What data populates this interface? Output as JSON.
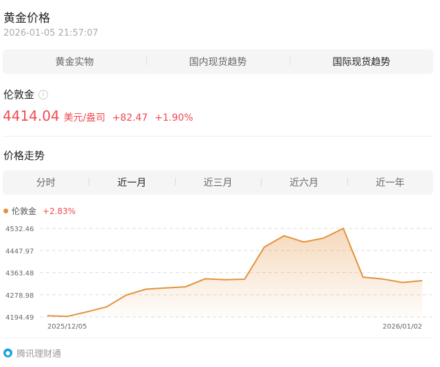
{
  "header": {
    "title": "黄金价格",
    "timestamp": "2026-01-05 21:57:07"
  },
  "tabs": [
    {
      "label": "黄金实物",
      "active": false
    },
    {
      "label": "国内现货趋势",
      "active": false
    },
    {
      "label": "国际现货趋势",
      "active": true
    }
  ],
  "quote": {
    "name": "伦敦金",
    "price": "4414.04",
    "unit": "美元/盎司",
    "change": "+82.47",
    "change_pct": "+1.90%",
    "color": "#f2474f"
  },
  "trend": {
    "title": "价格走势",
    "ranges": [
      {
        "label": "分时",
        "active": false
      },
      {
        "label": "近一月",
        "active": true
      },
      {
        "label": "近三月",
        "active": false
      },
      {
        "label": "近六月",
        "active": false
      },
      {
        "label": "近一年",
        "active": false
      }
    ]
  },
  "chart_data": {
    "type": "area",
    "legend": {
      "name": "伦敦金",
      "change": "+2.83%",
      "placement": "top-left"
    },
    "color": "#e3913b",
    "y_ticks": [
      "4532.46",
      "4447.97",
      "4363.48",
      "4278.98",
      "4194.49"
    ],
    "ylim": [
      4194.49,
      4532.46
    ],
    "x_labels": [
      "2025/12/05",
      "2026/01/02"
    ],
    "grid": true,
    "values": [
      4198.9,
      4196.3,
      4213.8,
      4233.1,
      4277.9,
      4300.7,
      4305.0,
      4309.5,
      4340.2,
      4336.7,
      4338.5,
      4461.4,
      4504.4,
      4480.7,
      4495.6,
      4532.46,
      4346.4,
      4339.3,
      4326.2,
      4333.2
    ]
  },
  "footer": {
    "source": "腾讯理财通",
    "icon": "tencent-licaitong-logo"
  }
}
